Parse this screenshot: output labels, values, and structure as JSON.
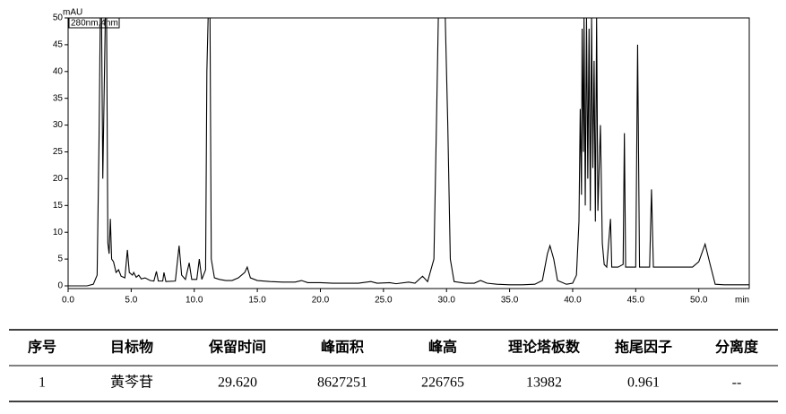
{
  "chart_data": {
    "type": "line",
    "y_label": "mAU",
    "x_label": "min",
    "xlim": [
      0,
      54
    ],
    "ylim": [
      -0.5,
      50
    ],
    "xticks": [
      {
        "value": 0,
        "label": "0.0"
      },
      {
        "value": 5,
        "label": "5.0"
      },
      {
        "value": 10,
        "label": "10.0"
      },
      {
        "value": 15,
        "label": "15.0"
      },
      {
        "value": 20,
        "label": "20.0"
      },
      {
        "value": 25,
        "label": "25.0"
      },
      {
        "value": 30,
        "label": "30.0"
      },
      {
        "value": 35,
        "label": "35.0"
      },
      {
        "value": 40,
        "label": "40.0"
      },
      {
        "value": 45,
        "label": "45.0"
      },
      {
        "value": 50,
        "label": "50.0"
      }
    ],
    "yticks": [
      0,
      5,
      10,
      15,
      20,
      25,
      30,
      35,
      40,
      45,
      50
    ],
    "x": [
      0,
      1.5,
      2.0,
      2.3,
      2.45,
      2.55,
      2.65,
      2.75,
      2.85,
      2.95,
      3.05,
      3.15,
      3.25,
      3.35,
      3.45,
      3.6,
      3.8,
      4.0,
      4.2,
      4.5,
      4.7,
      4.85,
      5.1,
      5.2,
      5.4,
      5.6,
      5.8,
      6.1,
      6.5,
      6.8,
      7.0,
      7.15,
      7.5,
      7.6,
      7.75,
      8.5,
      8.8,
      9.0,
      9.3,
      9.6,
      9.8,
      10.2,
      10.4,
      10.6,
      10.9,
      11.0,
      11.1,
      11.25,
      11.35,
      11.6,
      12,
      12.5,
      13,
      13.5,
      14.0,
      14.2,
      14.45,
      15,
      16,
      17,
      18,
      18.5,
      19,
      20,
      21,
      22,
      23,
      24,
      24.5,
      25.5,
      26,
      27,
      27.5,
      28.1,
      28.5,
      29.0,
      29.2,
      29.35,
      29.9,
      30.1,
      30.3,
      30.6,
      31.5,
      32.2,
      32.7,
      33.2,
      34,
      35,
      36,
      37,
      37.6,
      38.0,
      38.2,
      38.5,
      38.8,
      39.5,
      40.0,
      40.3,
      40.5,
      40.6,
      40.7,
      40.75,
      40.85,
      40.9,
      41.0,
      41.1,
      41.2,
      41.3,
      41.4,
      41.5,
      41.6,
      41.7,
      41.8,
      41.9,
      42.0,
      42.2,
      42.35,
      42.5,
      42.7,
      43.0,
      43.1,
      43.6,
      44.0,
      44.1,
      44.2,
      45.0,
      45.15,
      45.3,
      46.1,
      46.25,
      46.4,
      49.5,
      50.0,
      50.5,
      50.9,
      51.3,
      52,
      54
    ],
    "series": [
      {
        "name": "280nm,4nm",
        "color": "#000000",
        "values": [
          0,
          0,
          0.3,
          2,
          27,
          50,
          50,
          20,
          35,
          50,
          50,
          8,
          6,
          12.5,
          5,
          4.5,
          2.5,
          3,
          1.8,
          1.5,
          6.7,
          2.5,
          2,
          2.5,
          1.6,
          2,
          1.3,
          1.5,
          1,
          0.9,
          2.7,
          0.9,
          0.9,
          2.5,
          0.8,
          0.9,
          7.5,
          2,
          1.2,
          4.3,
          1.2,
          1.2,
          5,
          1.2,
          3,
          40,
          50,
          50,
          5,
          1.5,
          1.2,
          1,
          1,
          1.5,
          2.5,
          3.5,
          1.5,
          1,
          0.8,
          0.7,
          0.7,
          1,
          0.6,
          0.6,
          0.5,
          0.5,
          0.5,
          0.8,
          0.5,
          0.6,
          0.4,
          0.7,
          0.5,
          1.8,
          0.8,
          5,
          30,
          50,
          50,
          30,
          5,
          0.8,
          0.5,
          0.5,
          1,
          0.5,
          0.3,
          0.2,
          0.2,
          0.3,
          1,
          6,
          7.5,
          5,
          1,
          0.3,
          0.5,
          2,
          12,
          33,
          17,
          48,
          25,
          50,
          15,
          50,
          20,
          48,
          14,
          50,
          22,
          42,
          12,
          50,
          14,
          30,
          8,
          4,
          3.5,
          12.5,
          3.5,
          3.5,
          4,
          28.5,
          3.5,
          3.5,
          45,
          3.5,
          3.5,
          18,
          3.5,
          3.5,
          4.5,
          7.8,
          4,
          0.3,
          0.2,
          0.2
        ]
      }
    ]
  },
  "table": {
    "header": [
      "序号",
      "目标物",
      "保留时间",
      "峰面积",
      "峰高",
      "理论塔板数",
      "拖尾因子",
      "分离度"
    ],
    "rows": [
      [
        "1",
        "黄芩苷",
        "29.620",
        "8627251",
        "226765",
        "13982",
        "0.961",
        "--"
      ]
    ]
  }
}
